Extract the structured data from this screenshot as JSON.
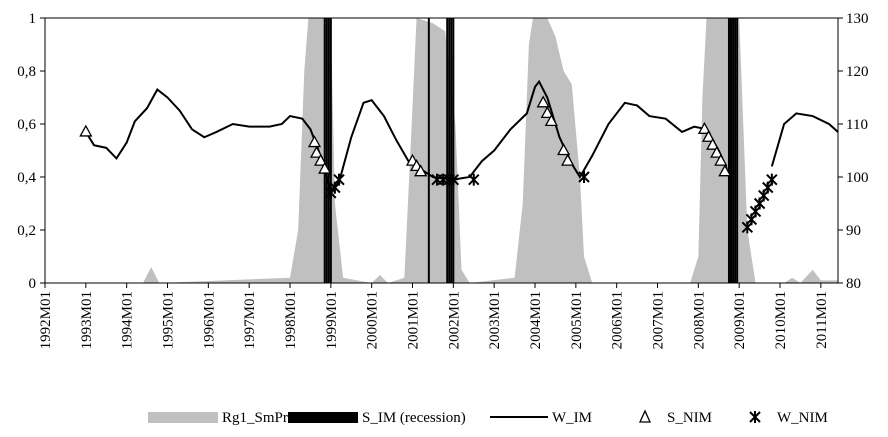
{
  "chart_data": {
    "type": "combo",
    "xlim": [
      1992,
      2011.42
    ],
    "xticks": [
      {
        "value": 1992,
        "label": "1992M01"
      },
      {
        "value": 1993,
        "label": "1993M01"
      },
      {
        "value": 1994,
        "label": "1994M01"
      },
      {
        "value": 1995,
        "label": "1995M01"
      },
      {
        "value": 1996,
        "label": "1996M01"
      },
      {
        "value": 1997,
        "label": "1997M01"
      },
      {
        "value": 1998,
        "label": "1998M01"
      },
      {
        "value": 1999,
        "label": "1999M01"
      },
      {
        "value": 2000,
        "label": "2000M01"
      },
      {
        "value": 2001,
        "label": "2001M01"
      },
      {
        "value": 2002,
        "label": "2002M01"
      },
      {
        "value": 2003,
        "label": "2003M01"
      },
      {
        "value": 2004,
        "label": "2004M01"
      },
      {
        "value": 2005,
        "label": "2005M01"
      },
      {
        "value": 2006,
        "label": "2006M01"
      },
      {
        "value": 2007,
        "label": "2007M01"
      },
      {
        "value": 2008,
        "label": "2008M01"
      },
      {
        "value": 2009,
        "label": "2009M01"
      },
      {
        "value": 2010,
        "label": "2010M01"
      },
      {
        "value": 2011,
        "label": "2011M01"
      }
    ],
    "ylim": [
      0,
      1
    ],
    "yticks": [
      0,
      {
        "value": 0.2,
        "label": "0,2"
      },
      {
        "value": 0.4,
        "label": "0,4"
      },
      {
        "value": 0.6,
        "label": "0,6"
      },
      {
        "value": 0.8,
        "label": "0,8"
      },
      1
    ],
    "y2lim": [
      80,
      130
    ],
    "y2ticks": [
      80,
      90,
      100,
      110,
      120,
      130
    ],
    "series": [
      {
        "name": "Rg1_SmProbs",
        "type": "area",
        "color": "#c0c0c0",
        "x": [
          1992,
          1994.4,
          1994.6,
          1994.8,
          1998.0,
          1998.2,
          1998.35,
          1998.45,
          1999.0,
          1999.1,
          1999.3,
          2000.0,
          2000.2,
          2000.4,
          2000.8,
          2000.95,
          2001.1,
          2001.5,
          2001.8,
          2002.05,
          2002.2,
          2002.4,
          2003.5,
          2003.7,
          2003.85,
          2003.95,
          2004.3,
          2004.5,
          2004.7,
          2004.9,
          2005.1,
          2005.2,
          2005.4,
          2007.8,
          2008.0,
          2008.1,
          2008.2,
          2009.0,
          2009.1,
          2009.2,
          2009.4,
          2010.1,
          2010.3,
          2010.5,
          2010.8,
          2011.0,
          2011.42
        ],
        "values": [
          0,
          0,
          0.06,
          0,
          0.02,
          0.2,
          0.8,
          1,
          1,
          0.3,
          0.02,
          0,
          0.03,
          0,
          0.02,
          0.5,
          1,
          0.98,
          0.95,
          0.6,
          0.05,
          0,
          0.02,
          0.3,
          0.9,
          1,
          1,
          0.93,
          0.8,
          0.75,
          0.4,
          0.1,
          0,
          0,
          0.1,
          0.7,
          1,
          1,
          0.6,
          0.2,
          0,
          0,
          0.02,
          0,
          0.05,
          0.01,
          0.01
        ]
      },
      {
        "name": "S_IM (recession)",
        "type": "bar",
        "color": "#000000",
        "x": [
          1998.85,
          1998.9,
          1998.95,
          1999.0,
          2001.4,
          2001.85,
          2001.9,
          2001.95,
          2002.0,
          2008.75,
          2008.8,
          2008.85,
          2008.9,
          2008.95
        ],
        "values": [
          1,
          1,
          1,
          1,
          1,
          1,
          1,
          1,
          1,
          1,
          1,
          1,
          1,
          1
        ]
      },
      {
        "name": "W_IM",
        "type": "line",
        "color": "#000000",
        "axis": "y2",
        "x": [
          1993.0,
          1993.2,
          1993.5,
          1993.75,
          1994.0,
          1994.2,
          1994.5,
          1994.75,
          1995.0,
          1995.3,
          1995.6,
          1995.9,
          1996.2,
          1996.6,
          1997.0,
          1997.5,
          1997.8,
          1998.0,
          1998.3,
          1998.5,
          1998.7,
          1998.9,
          1999.0,
          1999.2,
          1999.5,
          1999.8,
          2000.0,
          2000.3,
          2000.6,
          2000.9,
          2001.2,
          2001.5,
          2002.0,
          2002.4,
          2002.7,
          2003.0,
          2003.4,
          2003.8,
          2004.0,
          2004.1,
          2004.3,
          2004.6,
          2004.9,
          2005.1,
          2005.4,
          2005.8,
          2006.2,
          2006.5,
          2006.8,
          2007.2,
          2007.6,
          2007.9,
          2008.2,
          2008.5,
          2008.7,
          2008.8,
          2009.8,
          2010.1,
          2010.4,
          2010.8,
          2011.2,
          2011.42
        ],
        "values": [
          108.5,
          106,
          105.5,
          103.5,
          106.5,
          110.5,
          113,
          116.5,
          115,
          112.5,
          109,
          107.5,
          108.5,
          110,
          109.5,
          109.5,
          110,
          111.5,
          111,
          109,
          105,
          100,
          97.5,
          99,
          107.5,
          114,
          114.5,
          111.5,
          107,
          103,
          101.5,
          100,
          99.5,
          100,
          103,
          105,
          109,
          112,
          117,
          118,
          115,
          107.5,
          102.5,
          100,
          104,
          110,
          114,
          113.5,
          111.5,
          111,
          108.5,
          109.5,
          109,
          105,
          101.5,
          null,
          102,
          110,
          112,
          111.5,
          110,
          108.5
        ]
      },
      {
        "name": "S_NIM",
        "type": "marker",
        "marker": "triangle",
        "color": "#000000",
        "axis": "y2",
        "x": [
          1993.0,
          1998.6,
          1998.65,
          1998.75,
          1998.85,
          2001.0,
          2001.1,
          2001.2,
          2004.2,
          2004.3,
          2004.4,
          2004.7,
          2004.8,
          2008.15,
          2008.25,
          2008.35,
          2008.45,
          2008.55,
          2008.65
        ],
        "values": [
          108.5,
          106.5,
          104.5,
          103,
          101.5,
          103,
          102,
          101,
          114,
          112,
          110.5,
          105,
          103,
          109,
          107.5,
          106,
          104.5,
          103,
          101
        ]
      },
      {
        "name": "W_NIM",
        "type": "marker",
        "marker": "asterisk",
        "color": "#000000",
        "axis": "y2",
        "x": [
          1999.0,
          1999.1,
          1999.2,
          2001.6,
          2001.75,
          2001.9,
          2002.0,
          2002.5,
          2005.2,
          2009.2,
          2009.3,
          2009.4,
          2009.5,
          2009.6,
          2009.7,
          2009.8
        ],
        "values": [
          97,
          98,
          99.5,
          99.5,
          99.5,
          99.5,
          99.5,
          99.5,
          100,
          90.5,
          92,
          93.5,
          95,
          96.5,
          98,
          99.5
        ]
      }
    ],
    "grid": false
  }
}
